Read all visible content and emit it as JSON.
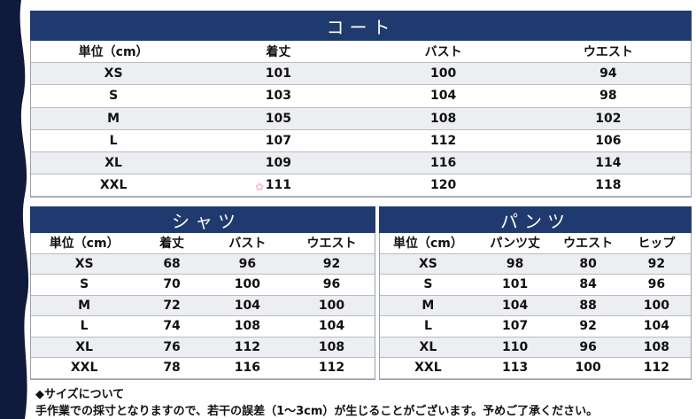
{
  "coat": {
    "title": "コート",
    "headers": [
      "単位（cm）",
      "着丈",
      "バスト",
      "ウエスト"
    ],
    "rows": [
      [
        "XS",
        "101",
        "100",
        "94"
      ],
      [
        "S",
        "103",
        "104",
        "98"
      ],
      [
        "M",
        "105",
        "108",
        "102"
      ],
      [
        "L",
        "107",
        "112",
        "106"
      ],
      [
        "XL",
        "109",
        "116",
        "114"
      ],
      [
        "XXL",
        "111",
        "120",
        "118"
      ]
    ]
  },
  "shirt": {
    "title": "シャツ",
    "headers": [
      "単位（cm）",
      "着丈",
      "バスト",
      "ウエスト"
    ],
    "rows": [
      [
        "XS",
        "68",
        "96",
        "92"
      ],
      [
        "S",
        "70",
        "100",
        "96"
      ],
      [
        "M",
        "72",
        "104",
        "100"
      ],
      [
        "L",
        "74",
        "108",
        "104"
      ],
      [
        "XL",
        "76",
        "112",
        "108"
      ],
      [
        "XXL",
        "78",
        "116",
        "112"
      ]
    ]
  },
  "pants": {
    "title": "パンツ",
    "headers": [
      "単位（cm）",
      "パンツ丈",
      "ウエスト",
      "ヒップ"
    ],
    "rows": [
      [
        "XS",
        "98",
        "80",
        "92"
      ],
      [
        "S",
        "101",
        "84",
        "96"
      ],
      [
        "M",
        "104",
        "88",
        "100"
      ],
      [
        "L",
        "107",
        "92",
        "104"
      ],
      [
        "XL",
        "110",
        "96",
        "108"
      ],
      [
        "XXL",
        "113",
        "100",
        "112"
      ]
    ]
  },
  "notes": {
    "heading": "◆サイズについて",
    "body": "手作業での採寸となりますので、若干の誤差（1～3cm）が生じることがございます。予めご了承ください。"
  },
  "colors": {
    "header_bg": "#1f3a6e",
    "edge": "#0f1a3c"
  }
}
